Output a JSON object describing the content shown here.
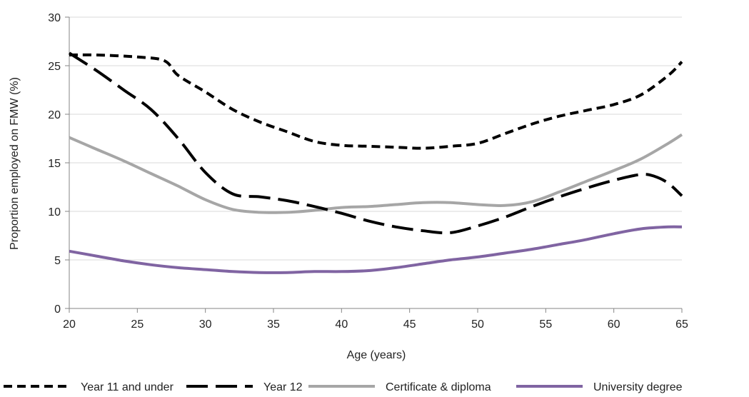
{
  "chart_data": {
    "type": "line",
    "title": "",
    "xlabel": "Age (years)",
    "ylabel": "Proportion employed on FMW (%)",
    "xlim": [
      20,
      65
    ],
    "ylim": [
      0,
      30
    ],
    "xticks": [
      20,
      25,
      30,
      35,
      40,
      45,
      50,
      55,
      60,
      65
    ],
    "yticks": [
      0,
      5,
      10,
      15,
      20,
      25,
      30
    ],
    "grid": "horizontal",
    "legend_position": "bottom",
    "series": [
      {
        "name": "Year 11 and under",
        "color": "#000000",
        "style": "short-dash",
        "x": [
          20,
          22,
          25,
          27,
          28,
          30,
          32,
          34,
          36,
          38,
          40,
          42,
          44,
          46,
          48,
          50,
          52,
          54,
          56,
          58,
          60,
          62,
          64,
          65
        ],
        "y": [
          26.1,
          26.1,
          25.9,
          25.5,
          24.0,
          22.3,
          20.5,
          19.2,
          18.2,
          17.2,
          16.8,
          16.7,
          16.6,
          16.5,
          16.7,
          17.0,
          18.0,
          19.0,
          19.8,
          20.4,
          21.0,
          22.0,
          24.0,
          25.4
        ]
      },
      {
        "name": "Year 12",
        "color": "#000000",
        "style": "long-dash",
        "x": [
          20,
          22,
          24,
          26,
          28,
          30,
          32,
          34,
          36,
          38,
          40,
          42,
          44,
          46,
          48,
          50,
          52,
          54,
          56,
          58,
          60,
          62,
          63,
          64,
          65
        ],
        "y": [
          26.3,
          24.5,
          22.5,
          20.5,
          17.5,
          14.0,
          11.8,
          11.5,
          11.1,
          10.5,
          9.8,
          9.0,
          8.4,
          8.0,
          7.8,
          8.5,
          9.4,
          10.5,
          11.5,
          12.4,
          13.2,
          13.8,
          13.6,
          12.9,
          11.6
        ]
      },
      {
        "name": "Certificate & diploma",
        "color": "#a6a6a6",
        "style": "solid",
        "x": [
          20,
          22,
          24,
          26,
          28,
          30,
          32,
          34,
          36,
          38,
          40,
          42,
          44,
          46,
          48,
          50,
          52,
          54,
          56,
          58,
          60,
          62,
          64,
          65
        ],
        "y": [
          17.6,
          16.4,
          15.2,
          13.9,
          12.6,
          11.2,
          10.2,
          9.9,
          9.9,
          10.1,
          10.4,
          10.5,
          10.7,
          10.9,
          10.9,
          10.7,
          10.6,
          11.0,
          12.0,
          13.1,
          14.2,
          15.4,
          17.0,
          17.9
        ]
      },
      {
        "name": "University degree",
        "color": "#8064a2",
        "style": "solid",
        "x": [
          20,
          22,
          24,
          26,
          28,
          30,
          32,
          34,
          36,
          38,
          40,
          42,
          44,
          46,
          48,
          50,
          52,
          54,
          56,
          58,
          60,
          62,
          64,
          65
        ],
        "y": [
          5.9,
          5.4,
          4.9,
          4.5,
          4.2,
          4.0,
          3.8,
          3.7,
          3.7,
          3.8,
          3.8,
          3.9,
          4.2,
          4.6,
          5.0,
          5.3,
          5.7,
          6.1,
          6.6,
          7.1,
          7.7,
          8.2,
          8.4,
          8.4
        ]
      }
    ]
  }
}
